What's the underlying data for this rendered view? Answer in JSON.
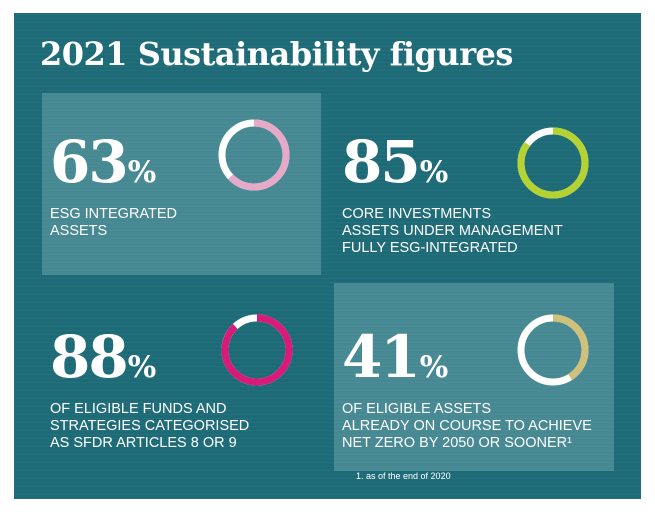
{
  "title": "2021 Sustainability figures",
  "colors": {
    "background": "#1e6b78",
    "box": "#5a9aa4",
    "ring_track": "#ffffff"
  },
  "chart_data": [
    {
      "type": "pie",
      "value": 63,
      "unit": "%",
      "label_lines": [
        "ESG INTEGRATED",
        "ASSETS"
      ],
      "color": "#e6a9c8",
      "highlighted_box": true
    },
    {
      "type": "pie",
      "value": 85,
      "unit": "%",
      "label_lines": [
        "CORE INVESTMENTS",
        "ASSETS UNDER MANAGEMENT",
        "FULLY ESG-INTEGRATED"
      ],
      "color": "#b5d233",
      "highlighted_box": false
    },
    {
      "type": "pie",
      "value": 88,
      "unit": "%",
      "label_lines": [
        "OF ELIGIBLE FUNDS AND",
        "STRATEGIES CATEGORISED",
        "AS SFDR ARTICLES 8 OR 9"
      ],
      "color": "#d81a78",
      "highlighted_box": false
    },
    {
      "type": "pie",
      "value": 41,
      "unit": "%",
      "label_lines": [
        "OF ELIGIBLE ASSETS",
        "ALREADY ON COURSE TO ACHIEVE",
        "NET ZERO BY 2050 OR SOONER¹"
      ],
      "color": "#cfc07a",
      "highlighted_box": true
    }
  ],
  "footnote": "1. as of the end of 2020"
}
